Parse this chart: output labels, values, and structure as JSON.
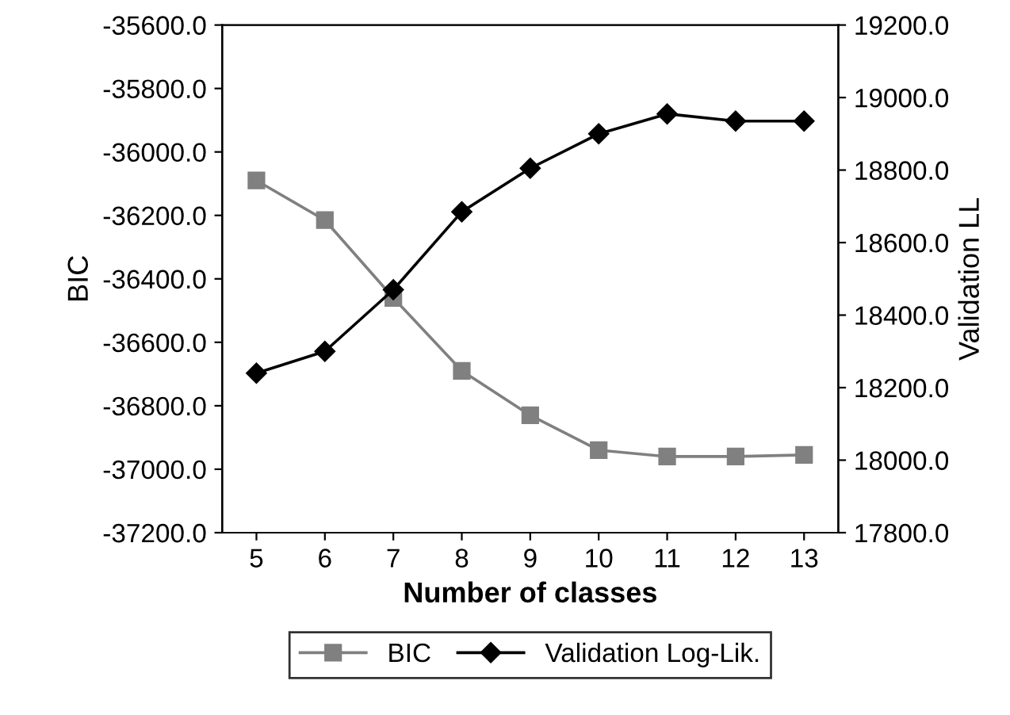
{
  "chart_data": {
    "type": "line",
    "xlabel": "Number of classes",
    "ylabel": "BIC",
    "y2label": "Validation LL",
    "categories": [
      "5",
      "6",
      "7",
      "8",
      "9",
      "10",
      "11",
      "12",
      "13"
    ],
    "series": [
      {
        "name": "BIC",
        "color": "#808080",
        "marker": "square",
        "values": [
          -36090,
          -36215,
          -36460,
          -36690,
          -36830,
          -36940,
          -36960,
          -36960,
          -36955
        ]
      },
      {
        "name": "Validation Log-Lik.",
        "color": "#000000",
        "marker": "diamond",
        "axis": "y2",
        "values": [
          18240,
          18300,
          18470,
          18685,
          18805,
          18900,
          18955,
          18935,
          18935
        ]
      }
    ],
    "ylim": [
      -37200,
      -35600
    ],
    "yticks": [
      {
        "value": -37200,
        "label": "-37200.0"
      },
      {
        "value": -37000,
        "label": "-37000.0"
      },
      {
        "value": -36800,
        "label": "-36800.0"
      },
      {
        "value": -36600,
        "label": "-36600.0"
      },
      {
        "value": -36400,
        "label": "-36400.0"
      },
      {
        "value": -36200,
        "label": "-36200.0"
      },
      {
        "value": -36000,
        "label": "-36000.0"
      },
      {
        "value": -35800,
        "label": "-35800.0"
      },
      {
        "value": -35600,
        "label": "-35600.0"
      }
    ],
    "y2lim": [
      17800,
      19200
    ],
    "y2ticks": [
      {
        "value": 17800,
        "label": "17800.0"
      },
      {
        "value": 18000,
        "label": "18000.0"
      },
      {
        "value": 18200,
        "label": "18200.0"
      },
      {
        "value": 18400,
        "label": "18400.0"
      },
      {
        "value": 18600,
        "label": "18600.0"
      },
      {
        "value": 18800,
        "label": "18800.0"
      },
      {
        "value": 19000,
        "label": "19000.0"
      },
      {
        "value": 19200,
        "label": "19200.0"
      }
    ],
    "grid": false,
    "legend": "bottom",
    "line_style": "solid"
  }
}
